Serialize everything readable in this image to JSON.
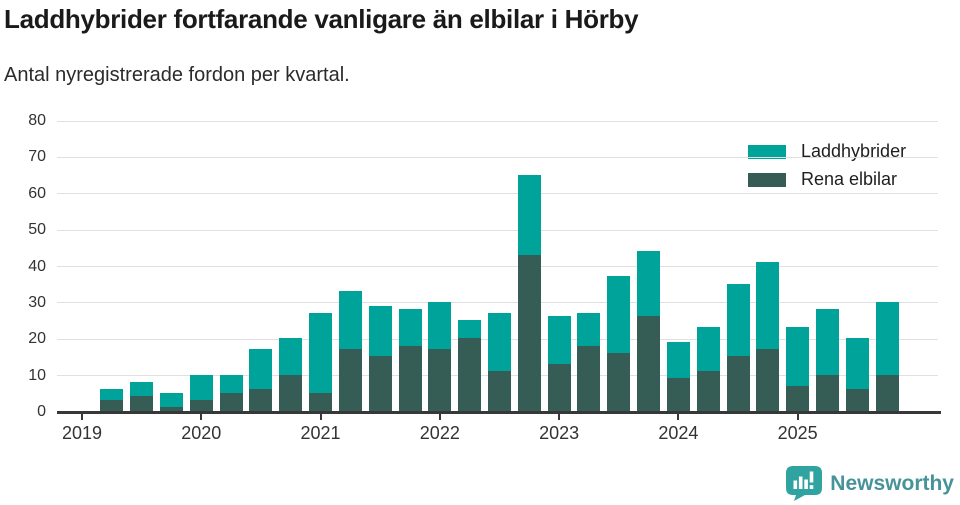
{
  "header": {
    "title": "Laddhybrider fortfarande vanligare än elbilar i Hörby",
    "subtitle": "Antal nyregistrerade fordon per kvartal."
  },
  "legend": [
    {
      "label": "Laddhybrider",
      "color": "#00a39a"
    },
    {
      "label": "Rena elbilar",
      "color": "#365c56"
    }
  ],
  "chart_data": {
    "type": "bar",
    "stacked": true,
    "title": "Laddhybrider fortfarande vanligare än elbilar i Hörby",
    "subtitle": "Antal nyregistrerade fordon per kvartal.",
    "categories": [
      "Q1 2019",
      "Q2 2019",
      "Q3 2019",
      "Q4 2019",
      "Q1 2020",
      "Q2 2020",
      "Q3 2020",
      "Q4 2020",
      "Q1 2021",
      "Q2 2021",
      "Q3 2021",
      "Q4 2021",
      "Q1 2022",
      "Q2 2022",
      "Q3 2022",
      "Q4 2022",
      "Q1 2023",
      "Q2 2023",
      "Q3 2023",
      "Q4 2023",
      "Q1 2024",
      "Q2 2024",
      "Q3 2024",
      "Q4 2024",
      "Q1 2025",
      "Q2 2025",
      "Q3 2025",
      "Q4 2025"
    ],
    "series": [
      {
        "name": "Rena elbilar",
        "stack_position": "bottom",
        "color": "#365c56",
        "values": [
          0,
          3,
          4,
          1,
          3,
          5,
          6,
          10,
          5,
          17,
          15,
          18,
          17,
          20,
          11,
          43,
          13,
          18,
          16,
          26,
          9,
          11,
          15,
          17,
          7,
          10,
          6,
          10
        ]
      },
      {
        "name": "Laddhybrider",
        "stack_position": "top",
        "color": "#00a39a",
        "values": [
          0,
          3,
          4,
          4,
          7,
          5,
          11,
          10,
          22,
          16,
          14,
          10,
          13,
          5,
          16,
          22,
          13,
          9,
          21,
          18,
          10,
          12,
          20,
          24,
          16,
          18,
          14,
          20
        ]
      }
    ],
    "totals": [
      0,
      6,
      8,
      5,
      10,
      10,
      17,
      20,
      27,
      33,
      29,
      28,
      30,
      25,
      27,
      65,
      26,
      27,
      37,
      44,
      19,
      23,
      35,
      41,
      23,
      28,
      20,
      30
    ],
    "xticks": [
      "2019",
      "2020",
      "2021",
      "2022",
      "2023",
      "2024",
      "2025"
    ],
    "xlabel": "",
    "ylabel": "",
    "ylim": [
      0,
      80
    ],
    "ytick_step": 10,
    "grid": "horizontal",
    "legend_position": "top-right"
  },
  "footer": {
    "brand": "Newsworthy",
    "brand_color": "#46939a",
    "icon": "newsworthy-speech-bubble-barchart-icon",
    "icon_color": "#2fa3a0"
  }
}
